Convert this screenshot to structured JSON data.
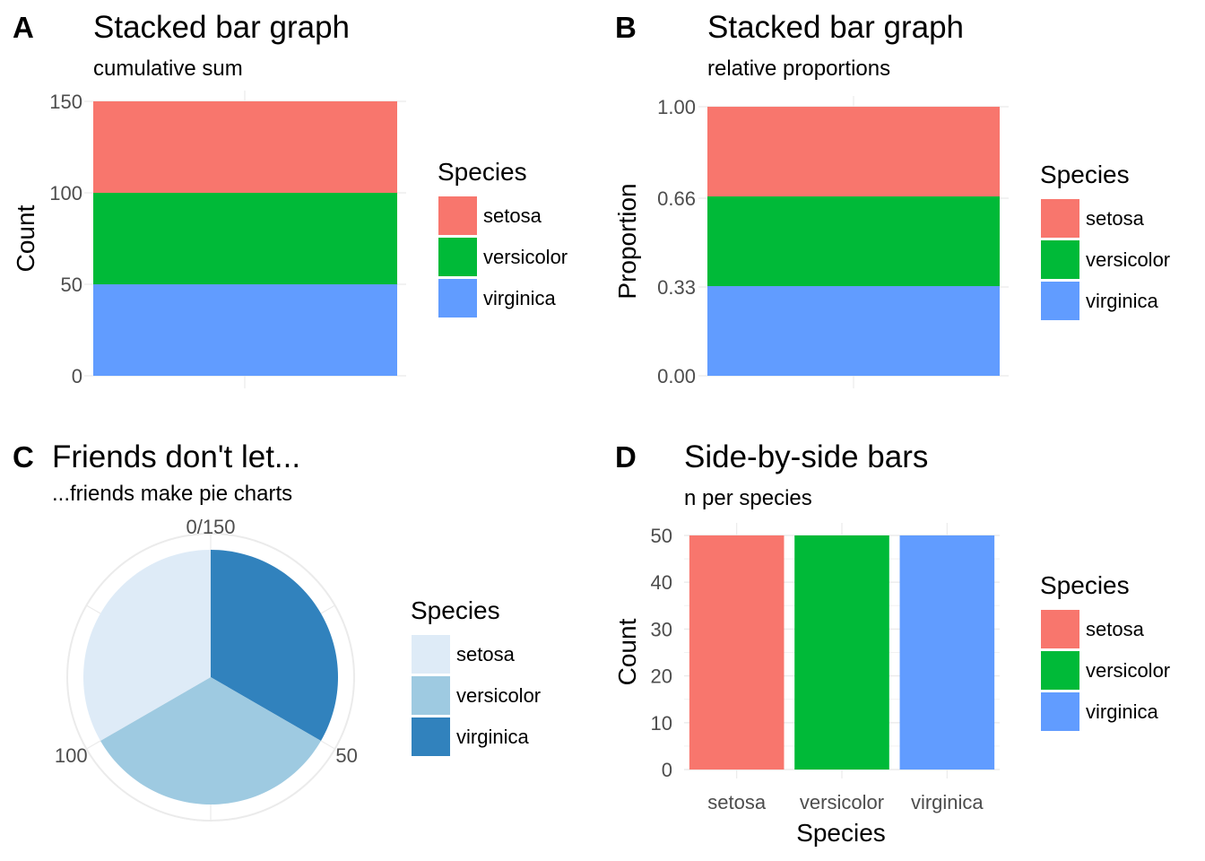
{
  "chart_data": [
    {
      "panel_tag": "A",
      "type": "bar",
      "stacked": true,
      "title": "Stacked bar graph",
      "subtitle": "cumulative sum",
      "ylabel": "Count",
      "xlabel": "",
      "ylim": [
        0,
        150
      ],
      "yticks": [
        0,
        50,
        100,
        150
      ],
      "ytick_labels": [
        "0",
        "50",
        "100",
        "150"
      ],
      "grid": true,
      "legend": {
        "title": "Species",
        "position": "right",
        "entries": [
          {
            "label": "setosa",
            "color": "#F8766D"
          },
          {
            "label": "versicolor",
            "color": "#00BA38"
          },
          {
            "label": "virginica",
            "color": "#619CFF"
          }
        ]
      },
      "stack_order_bottom_to_top": [
        "virginica",
        "versicolor",
        "setosa"
      ],
      "series": [
        {
          "name": "setosa",
          "values": [
            50
          ]
        },
        {
          "name": "versicolor",
          "values": [
            50
          ]
        },
        {
          "name": "virginica",
          "values": [
            50
          ]
        }
      ]
    },
    {
      "panel_tag": "B",
      "type": "bar",
      "stacked": true,
      "normalized": true,
      "title": "Stacked bar graph",
      "subtitle": "relative proportions",
      "ylabel": "Proportion",
      "xlabel": "",
      "ylim": [
        0,
        1
      ],
      "yticks": [
        0,
        0.33,
        0.66,
        1.0
      ],
      "ytick_labels": [
        "0.00",
        "0.33",
        "0.66",
        "1.00"
      ],
      "grid": true,
      "legend": {
        "title": "Species",
        "position": "right",
        "entries": [
          {
            "label": "setosa",
            "color": "#F8766D"
          },
          {
            "label": "versicolor",
            "color": "#00BA38"
          },
          {
            "label": "virginica",
            "color": "#619CFF"
          }
        ]
      },
      "stack_order_bottom_to_top": [
        "virginica",
        "versicolor",
        "setosa"
      ],
      "series": [
        {
          "name": "setosa",
          "values": [
            0.3333
          ]
        },
        {
          "name": "versicolor",
          "values": [
            0.3333
          ]
        },
        {
          "name": "virginica",
          "values": [
            0.3333
          ]
        }
      ]
    },
    {
      "panel_tag": "C",
      "type": "pie",
      "title": "Friends don't let...",
      "subtitle": "...friends make pie charts",
      "theta_breaks": [
        0,
        50,
        100
      ],
      "theta_labels": [
        "0/150",
        "50",
        "100"
      ],
      "theta_max": 150,
      "legend": {
        "title": "Species",
        "position": "right",
        "entries": [
          {
            "label": "setosa",
            "color": "#DEEBF7"
          },
          {
            "label": "versicolor",
            "color": "#9ECAE1"
          },
          {
            "label": "virginica",
            "color": "#3182BD"
          }
        ]
      },
      "slice_order_clockwise_from_top": [
        "virginica",
        "versicolor",
        "setosa"
      ],
      "slices": [
        {
          "name": "setosa",
          "value": 50
        },
        {
          "name": "versicolor",
          "value": 50
        },
        {
          "name": "virginica",
          "value": 50
        }
      ]
    },
    {
      "panel_tag": "D",
      "type": "bar",
      "title": "Side-by-side bars",
      "subtitle": "n per species",
      "xlabel": "Species",
      "ylabel": "Count",
      "ylim": [
        0,
        50
      ],
      "yticks": [
        0,
        10,
        20,
        30,
        40,
        50
      ],
      "ytick_labels": [
        "0",
        "10",
        "20",
        "30",
        "40",
        "50"
      ],
      "grid": true,
      "categories": [
        "setosa",
        "versicolor",
        "virginica"
      ],
      "values": [
        50,
        50,
        50
      ],
      "colors": [
        "#F8766D",
        "#00BA38",
        "#619CFF"
      ],
      "legend": {
        "title": "Species",
        "position": "right",
        "entries": [
          {
            "label": "setosa",
            "color": "#F8766D"
          },
          {
            "label": "versicolor",
            "color": "#00BA38"
          },
          {
            "label": "virginica",
            "color": "#619CFF"
          }
        ]
      }
    }
  ]
}
